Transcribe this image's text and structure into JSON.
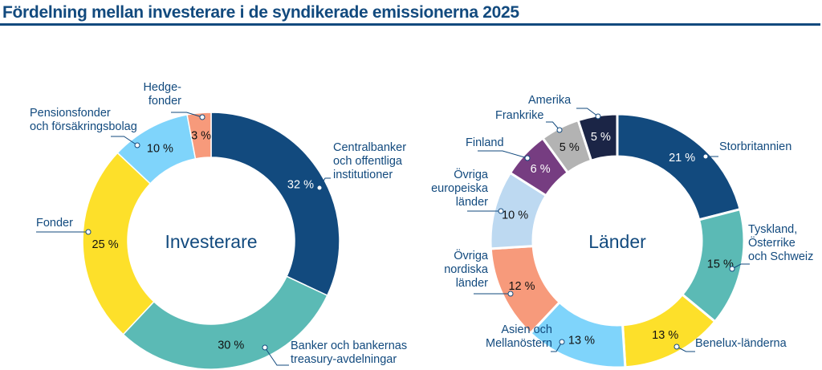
{
  "title": "Fördelning mellan investerare i de syndikerade emissionerna 2025",
  "chart_data": [
    {
      "type": "pie",
      "variant": "donut",
      "center_label": "Investerare",
      "unit": "%",
      "categories": [
        "Centralbanker och offentliga institutioner",
        "Banker och bankernas treasury-avdelningar",
        "Fonder",
        "Pensionsfonder och försäkringsbolag",
        "Hedgefonder"
      ],
      "label_lines": [
        [
          "Centralbanker",
          "och offentliga",
          "institutioner"
        ],
        [
          "Banker och bankernas",
          "treasury-avdelningar"
        ],
        [
          "Fonder"
        ],
        [
          "Pensionsfonder",
          "och försäkringsbolag"
        ],
        [
          "Hedge-",
          "fonder"
        ]
      ],
      "values": [
        32,
        30,
        25,
        10,
        3
      ],
      "value_labels": [
        "32 %",
        "30 %",
        "25 %",
        "10 %",
        "3 %"
      ],
      "colors": [
        "#124a7e",
        "#5bbab5",
        "#fde02a",
        "#7fd4fb",
        "#f79a7b"
      ]
    },
    {
      "type": "pie",
      "variant": "donut",
      "center_label": "Länder",
      "unit": "%",
      "categories": [
        "Storbritannien",
        "Tyskland, Österrike och Schweiz",
        "Benelux-länderna",
        "Asien och Mellanöstern",
        "Övriga nordiska länder",
        "Övriga europeiska länder",
        "Finland",
        "Frankrike",
        "Amerika"
      ],
      "label_lines": [
        [
          "Storbritannien"
        ],
        [
          "Tyskland,",
          "Österrike",
          "och Schweiz"
        ],
        [
          "Benelux-länderna"
        ],
        [
          "Asien och",
          "Mellanöstern"
        ],
        [
          "Övriga",
          "nordiska",
          "länder"
        ],
        [
          "Övriga",
          "europeiska",
          "länder"
        ],
        [
          "Finland"
        ],
        [
          "Frankrike"
        ],
        [
          "Amerika"
        ]
      ],
      "values": [
        21,
        15,
        13,
        13,
        12,
        10,
        6,
        5,
        5
      ],
      "value_labels": [
        "21 %",
        "15 %",
        "13 %",
        "13 %",
        "12 %",
        "10 %",
        "6 %",
        "5 %",
        "5 %"
      ],
      "colors": [
        "#124a7e",
        "#5bbab5",
        "#fde02a",
        "#7fd4fb",
        "#f79a7b",
        "#bdd9f1",
        "#763d81",
        "#b3b3b3",
        "#1b2546"
      ],
      "value_label_colors": [
        "#fff",
        "#111",
        "#111",
        "#111",
        "#111",
        "#111",
        "#fff",
        "#111",
        "#fff"
      ]
    }
  ]
}
